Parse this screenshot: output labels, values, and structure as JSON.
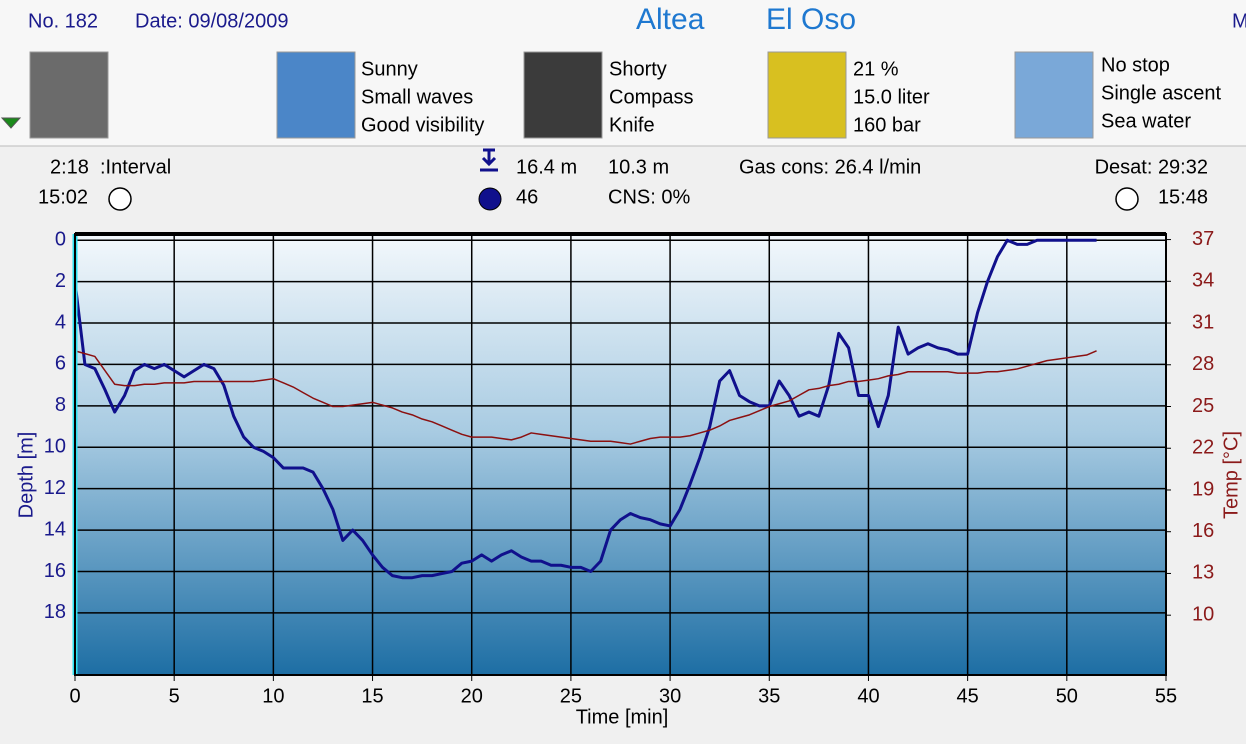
{
  "header": {
    "number": "No. 182",
    "date": "Date: 09/08/2009",
    "site_1": "Altea",
    "site_2": "El Oso",
    "cut": "M"
  },
  "info_groups": [
    {
      "lines": [
        "Sunny",
        "Small waves",
        "Good visibility"
      ]
    },
    {
      "lines": [
        "Shorty",
        "Compass",
        "Knife"
      ]
    },
    {
      "lines": [
        "21 %",
        "15.0 liter",
        "160 bar"
      ]
    },
    {
      "lines": [
        "No stop",
        "Single ascent",
        "Sea water"
      ]
    }
  ],
  "stats": {
    "interval_time": "2:18",
    "interval_label": ":Interval",
    "start_time": "15:02",
    "max_depth": "16.4 m",
    "avg_depth": "10.3 m",
    "dive_time": "46",
    "cns": "CNS:  0%",
    "gas": "Gas cons: 26.4 l/min",
    "desat": "Desat: 29:32",
    "end_time": "15:48"
  },
  "chart_data": {
    "type": "line",
    "x_label": "Time [min]",
    "y_label": "Depth [m]",
    "y2_label": "Temp [°C]",
    "xlim": [
      0,
      55
    ],
    "xticks": [
      0,
      5,
      10,
      15,
      20,
      25,
      30,
      35,
      40,
      45,
      50,
      55
    ],
    "ylim": [
      -0.3,
      21
    ],
    "y_inverted": true,
    "yticks": [
      0,
      2,
      4,
      6,
      8,
      10,
      12,
      14,
      16,
      18
    ],
    "y2lim": [
      5.7,
      37.4
    ],
    "y2ticks": [
      37,
      34,
      31,
      28,
      25,
      22,
      19,
      16,
      13,
      10
    ],
    "grid": true,
    "x": [
      0,
      0.5,
      1,
      1.5,
      2,
      2.5,
      3,
      3.5,
      4,
      4.5,
      5,
      5.5,
      6,
      6.5,
      7,
      7.5,
      8,
      8.5,
      9,
      9.5,
      10,
      10.5,
      11,
      11.5,
      12,
      12.5,
      13,
      13.5,
      14,
      14.5,
      15,
      15.5,
      16,
      16.5,
      17,
      17.5,
      18,
      18.5,
      19,
      19.5,
      20,
      20.5,
      21,
      21.5,
      22,
      22.5,
      23,
      23.5,
      24,
      24.5,
      25,
      25.5,
      26,
      26.5,
      27,
      27.5,
      28,
      28.5,
      29,
      29.5,
      30,
      30.5,
      31,
      31.5,
      32,
      32.5,
      33,
      33.5,
      34,
      34.5,
      35,
      35.5,
      36,
      36.5,
      37,
      37.5,
      38,
      38.5,
      39,
      39.5,
      40,
      40.5,
      41,
      41.5,
      42,
      42.5,
      43,
      43.5,
      44,
      44.5,
      45,
      45.5,
      46,
      46.5,
      47,
      47.5,
      48,
      48.5,
      49,
      49.5,
      50,
      50.5,
      51,
      51.5
    ],
    "series": [
      {
        "color": "#10108c",
        "values": [
          2,
          6,
          6.2,
          7.2,
          8.3,
          7.5,
          6.3,
          6,
          6.2,
          6,
          6.3,
          6.6,
          6.3,
          6,
          6.2,
          7,
          8.5,
          9.5,
          10,
          10.2,
          10.5,
          11,
          11,
          11,
          11.2,
          12,
          13,
          14.5,
          14,
          14.5,
          15.2,
          15.8,
          16.2,
          16.3,
          16.3,
          16.2,
          16.2,
          16.1,
          16,
          15.6,
          15.5,
          15.2,
          15.5,
          15.2,
          15,
          15.3,
          15.5,
          15.5,
          15.7,
          15.7,
          15.8,
          15.8,
          16,
          15.5,
          14,
          13.5,
          13.2,
          13.4,
          13.5,
          13.7,
          13.8,
          13,
          11.8,
          10.5,
          9,
          6.8,
          6.3,
          7.5,
          7.8,
          8,
          8,
          6.8,
          7.5,
          8.5,
          8.3,
          8.5,
          7,
          4.5,
          5.2,
          7.5,
          7.5,
          9,
          7.5,
          4.2,
          5.5,
          5.2,
          5,
          5.2,
          5.3,
          5.5,
          5.5,
          3.5,
          2,
          0.8,
          0,
          0.2,
          0.2,
          0,
          0,
          0,
          0,
          0,
          0,
          0
        ]
      },
      {
        "color": "#8b1010",
        "axis": "y2",
        "values": [
          29,
          28.8,
          28.6,
          27.6,
          26.6,
          26.5,
          26.5,
          26.6,
          26.6,
          26.7,
          26.7,
          26.7,
          26.8,
          26.8,
          26.8,
          26.8,
          26.8,
          26.8,
          26.8,
          26.9,
          27,
          26.7,
          26.4,
          26,
          25.6,
          25.3,
          25,
          25,
          25.1,
          25.2,
          25.3,
          25.1,
          24.9,
          24.6,
          24.4,
          24.1,
          23.9,
          23.6,
          23.3,
          23,
          22.8,
          22.8,
          22.8,
          22.7,
          22.6,
          22.8,
          23.1,
          23,
          22.9,
          22.8,
          22.7,
          22.6,
          22.5,
          22.5,
          22.5,
          22.4,
          22.3,
          22.5,
          22.7,
          22.8,
          22.8,
          22.8,
          22.9,
          23.1,
          23.3,
          23.6,
          24,
          24.2,
          24.4,
          24.7,
          25,
          25.2,
          25.4,
          25.8,
          26.2,
          26.3,
          26.5,
          26.6,
          26.8,
          26.8,
          26.9,
          27,
          27.2,
          27.3,
          27.5,
          27.5,
          27.5,
          27.5,
          27.5,
          27.4,
          27.4,
          27.4,
          27.5,
          27.5,
          27.6,
          27.7,
          27.9,
          28.1,
          28.3,
          28.4,
          28.5,
          28.6,
          28.7,
          29
        ]
      }
    ]
  }
}
